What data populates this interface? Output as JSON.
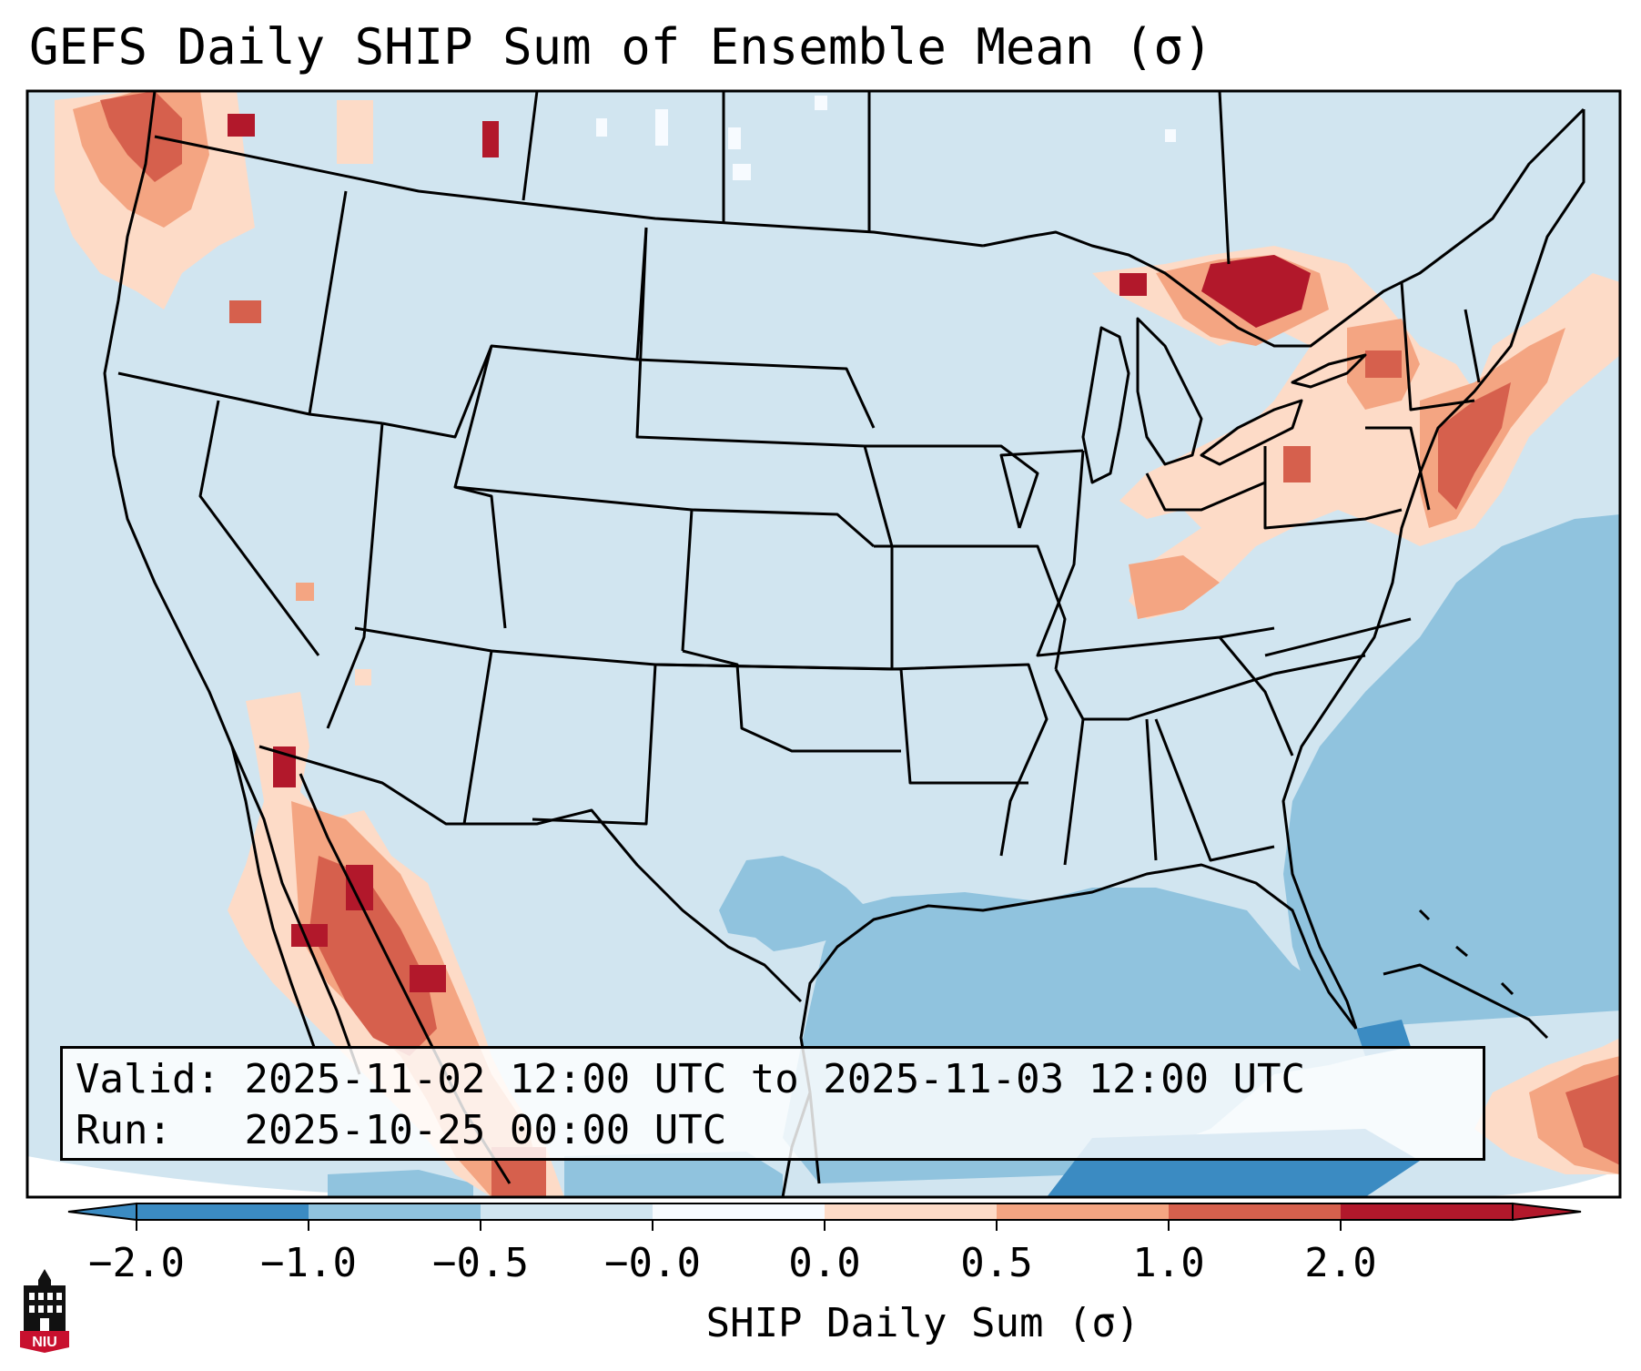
{
  "title": "GEFS Daily SHIP Sum of Ensemble Mean (σ)",
  "info": {
    "valid_label": "Valid:",
    "valid_value": "2025-11-02 12:00 UTC to 2025-11-03 12:00 UTC",
    "run_label": "Run:",
    "run_value": "2025-10-25 00:00 UTC"
  },
  "colorbar": {
    "label": "SHIP Daily Sum (σ)",
    "ticks": [
      "−2.0",
      "−1.0",
      "−0.5",
      "−0.0",
      "0.0",
      "0.5",
      "1.0",
      "2.0"
    ],
    "colors": [
      "#3b8bc2",
      "#90c3de",
      "#d1e5f0",
      "#f7fbff",
      "#fddbc7",
      "#f4a582",
      "#d6604d",
      "#b2182b"
    ],
    "extend": "both"
  },
  "map": {
    "region": "Contiguous United States",
    "background_color": "#d1e5f0",
    "ocean_color": "#90c3de"
  },
  "logo": {
    "text": "NIU",
    "color": "#c8102e"
  }
}
